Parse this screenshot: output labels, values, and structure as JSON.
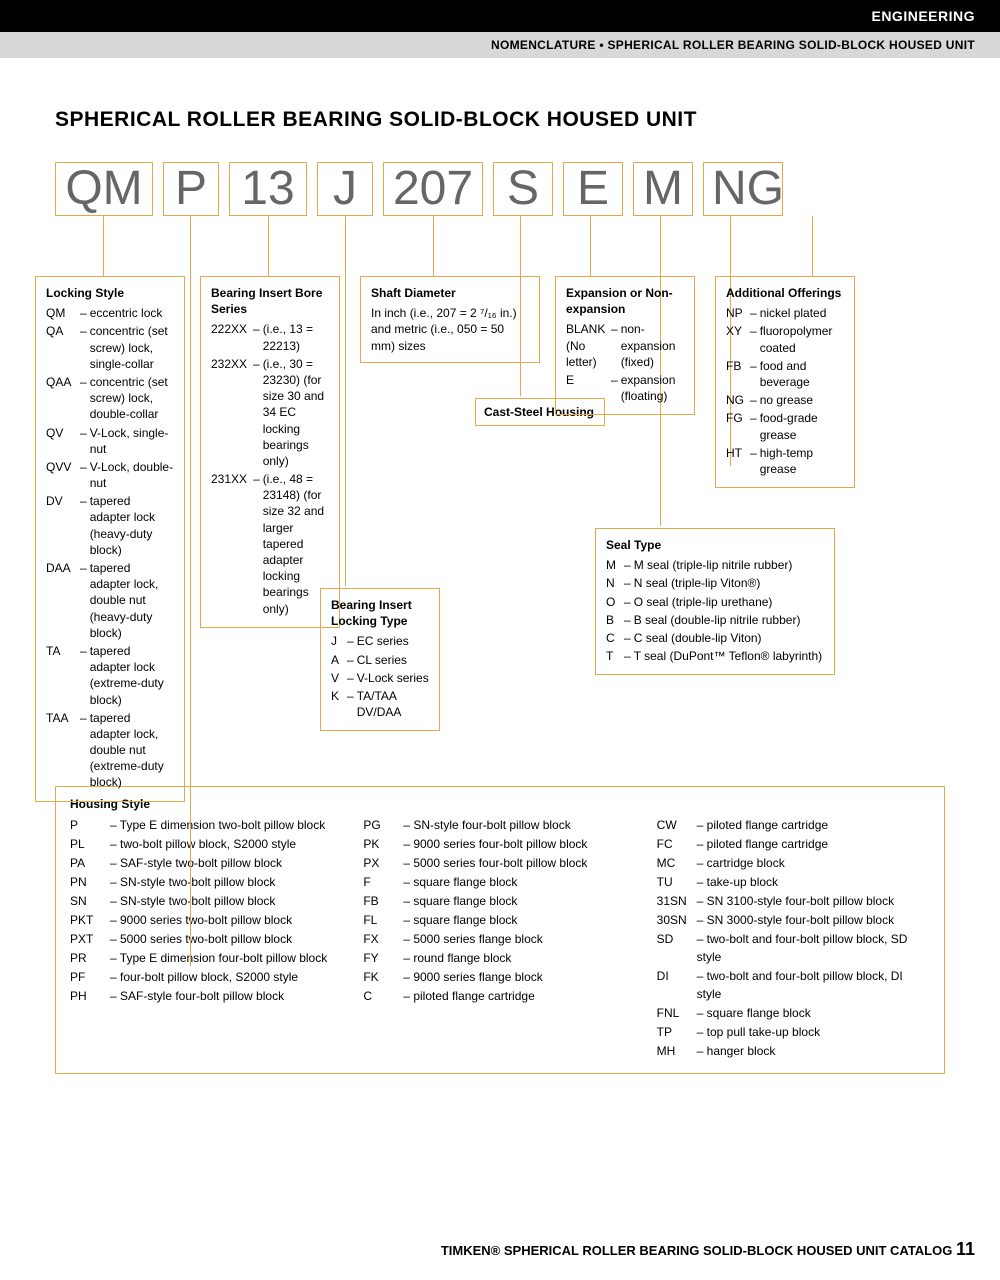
{
  "header": {
    "section": "ENGINEERING",
    "breadcrumb": "NOMENCLATURE • SPHERICAL ROLLER BEARING SOLID-BLOCK HOUSED UNIT"
  },
  "title": "SPHERICAL ROLLER BEARING SOLID-BLOCK HOUSED UNIT",
  "codes": [
    "QM",
    "P",
    "13",
    "J",
    "207",
    "S",
    "E",
    "M",
    "NG"
  ],
  "colors": {
    "border": "#e5a84a",
    "code_text": "#666666"
  },
  "boxes": {
    "locking_style": {
      "title": "Locking Style",
      "items": [
        {
          "c": "QM",
          "t": "eccentric lock"
        },
        {
          "c": "QA",
          "t": "concentric (set screw) lock, single-collar"
        },
        {
          "c": "QAA",
          "t": "concentric (set screw) lock, double-collar"
        },
        {
          "c": "QV",
          "t": "V-Lock, single-nut"
        },
        {
          "c": "QVV",
          "t": "V-Lock, double-nut"
        },
        {
          "c": "DV",
          "t": "tapered adapter lock (heavy-duty block)"
        },
        {
          "c": "DAA",
          "t": "tapered adapter lock, double nut (heavy-duty block)"
        },
        {
          "c": "TA",
          "t": "tapered adapter lock (extreme-duty block)"
        },
        {
          "c": "TAA",
          "t": "tapered adapter lock, double nut (extreme-duty block)"
        }
      ]
    },
    "bore_series": {
      "title": "Bearing Insert Bore Series",
      "items": [
        {
          "c": "222XX",
          "t": "(i.e., 13 = 22213)"
        },
        {
          "c": "232XX",
          "t": "(i.e., 30 = 23230) (for size 30 and 34 EC locking bearings only)"
        },
        {
          "c": "231XX",
          "t": "(i.e., 48 = 23148) (for size 32 and larger tapered adapter locking bearings only)"
        }
      ]
    },
    "locking_type": {
      "title": "Bearing Insert Locking Type",
      "items": [
        {
          "c": "J",
          "t": "EC series"
        },
        {
          "c": "A",
          "t": "CL series"
        },
        {
          "c": "V",
          "t": "V-Lock series"
        },
        {
          "c": "K",
          "t": "TA/TAA DV/DAA"
        }
      ]
    },
    "shaft": {
      "title": "Shaft Diameter",
      "text": "In inch (i.e., 207 = 2 ⁷/₁₆ in.) and metric (i.e., 050 = 50 mm) sizes"
    },
    "cast": {
      "title": "Cast-Steel Housing"
    },
    "expansion": {
      "title": "Expansion or Non-expansion",
      "items": [
        {
          "c": "BLANK (No letter)",
          "t": "non-expansion (fixed)"
        },
        {
          "c": "E",
          "t": "expansion (floating)"
        }
      ]
    },
    "seal": {
      "title": "Seal Type",
      "items": [
        {
          "c": "M",
          "t": "M seal (triple-lip nitrile rubber)"
        },
        {
          "c": "N",
          "t": "N seal (triple-lip Viton®)"
        },
        {
          "c": "O",
          "t": "O seal (triple-lip urethane)"
        },
        {
          "c": "B",
          "t": "B seal (double-lip nitrile rubber)"
        },
        {
          "c": "C",
          "t": "C seal (double-lip Viton)"
        },
        {
          "c": "T",
          "t": "T seal (DuPont™ Teflon® labyrinth)"
        }
      ]
    },
    "additional": {
      "title": "Additional Offerings",
      "items": [
        {
          "c": "NP",
          "t": "nickel plated"
        },
        {
          "c": "XY",
          "t": "fluoropolymer coated"
        },
        {
          "c": "FB",
          "t": "food and beverage"
        },
        {
          "c": "NG",
          "t": "no grease"
        },
        {
          "c": "FG",
          "t": "food-grade grease"
        },
        {
          "c": "HT",
          "t": "high-temp grease"
        }
      ]
    }
  },
  "housing": {
    "title": "Housing Style",
    "col1": [
      {
        "c": "P",
        "t": "Type E dimension two-bolt pillow block"
      },
      {
        "c": "PL",
        "t": "two-bolt pillow block, S2000 style"
      },
      {
        "c": "PA",
        "t": "SAF-style two-bolt pillow block"
      },
      {
        "c": "PN",
        "t": "SN-style two-bolt pillow block"
      },
      {
        "c": "SN",
        "t": "SN-style two-bolt pillow block"
      },
      {
        "c": "PKT",
        "t": "9000 series two-bolt pillow block"
      },
      {
        "c": "PXT",
        "t": "5000 series two-bolt pillow block"
      },
      {
        "c": "PR",
        "t": "Type E dimension four-bolt pillow block"
      },
      {
        "c": "PF",
        "t": "four-bolt pillow block, S2000 style"
      },
      {
        "c": "PH",
        "t": "SAF-style four-bolt pillow block"
      }
    ],
    "col2": [
      {
        "c": "PG",
        "t": "SN-style four-bolt pillow block"
      },
      {
        "c": "PK",
        "t": "9000 series four-bolt pillow block"
      },
      {
        "c": "PX",
        "t": "5000 series four-bolt pillow block"
      },
      {
        "c": "F",
        "t": "square flange block"
      },
      {
        "c": "FB",
        "t": "square flange block"
      },
      {
        "c": "FL",
        "t": "square flange block"
      },
      {
        "c": "FX",
        "t": "5000 series flange block"
      },
      {
        "c": "FY",
        "t": "round flange block"
      },
      {
        "c": "FK",
        "t": "9000 series flange block"
      },
      {
        "c": "C",
        "t": "piloted flange cartridge"
      }
    ],
    "col3": [
      {
        "c": "CW",
        "t": "piloted flange cartridge"
      },
      {
        "c": "FC",
        "t": "piloted flange cartridge"
      },
      {
        "c": "MC",
        "t": "cartridge block"
      },
      {
        "c": "TU",
        "t": "take-up block"
      },
      {
        "c": "31SN",
        "t": "SN 3100-style four-bolt pillow block"
      },
      {
        "c": "30SN",
        "t": "SN 3000-style four-bolt pillow block"
      },
      {
        "c": "SD",
        "t": "two-bolt and four-bolt pillow block, SD style"
      },
      {
        "c": "DI",
        "t": "two-bolt and four-bolt pillow block, DI style"
      },
      {
        "c": "FNL",
        "t": "square flange block"
      },
      {
        "c": "TP",
        "t": "top pull take-up block"
      },
      {
        "c": "MH",
        "t": "hanger block"
      }
    ]
  },
  "footer": {
    "brand": "TIMKEN®",
    "text": " SPHERICAL ROLLER BEARING SOLID-BLOCK HOUSED UNIT CATALOG ",
    "page": "11"
  }
}
